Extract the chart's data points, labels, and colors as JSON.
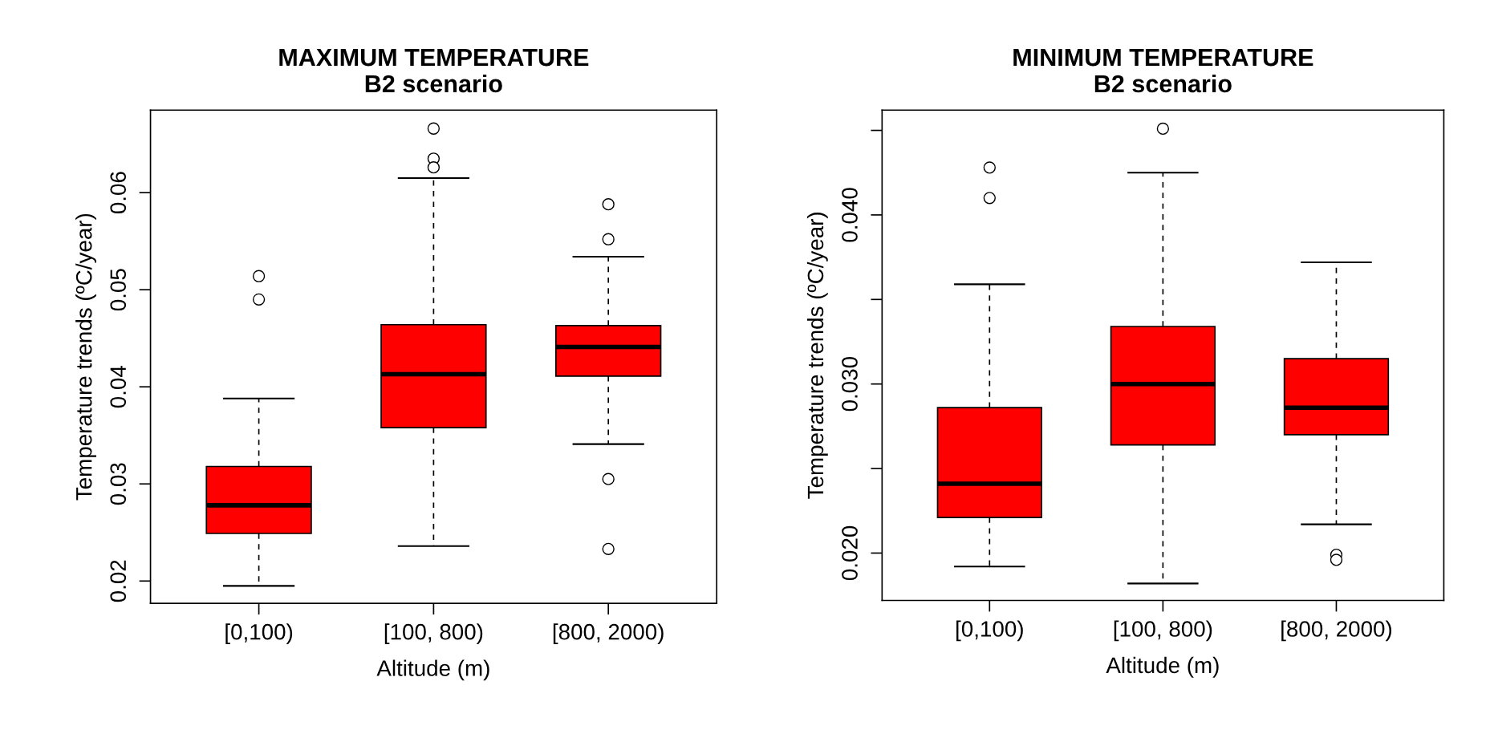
{
  "chart_data": [
    {
      "type": "box",
      "title": "MAXIMUM TEMPERATURE\nB2 scenario",
      "xlabel": "Altitude (m)",
      "ylabel": "Temperature trends (ºC/year)",
      "categories": [
        "[0,100)",
        "[100, 800)",
        "[800, 2000)"
      ],
      "color": "#ff0000",
      "ylim": [
        0.0177,
        0.0685
      ],
      "yticks": [
        0.02,
        0.03,
        0.04,
        0.05,
        0.06
      ],
      "grid": false,
      "boxes": [
        {
          "low": 0.0195,
          "q1": 0.0249,
          "median": 0.0278,
          "q3": 0.0318,
          "high": 0.0388,
          "outliers": [
            0.0514,
            0.049
          ]
        },
        {
          "low": 0.0236,
          "q1": 0.0358,
          "median": 0.0413,
          "q3": 0.0464,
          "high": 0.0615,
          "outliers": [
            0.0666,
            0.0635,
            0.0626
          ]
        },
        {
          "low": 0.0341,
          "q1": 0.0411,
          "median": 0.0441,
          "q3": 0.0463,
          "high": 0.0534,
          "outliers": [
            0.0588,
            0.0552,
            0.0305,
            0.0233
          ]
        }
      ]
    },
    {
      "type": "box",
      "title": "MINIMUM TEMPERATURE\nB2 scenario",
      "xlabel": "Altitude (m)",
      "ylabel": "Temperature trends (ºC/year)",
      "categories": [
        "[0,100)",
        "[100, 800)",
        "[800, 2000)"
      ],
      "color": "#ff0000",
      "ylim": [
        0.0172,
        0.0462
      ],
      "yticks": [
        {
          "value": 0.02,
          "label": "0.020"
        },
        {
          "value": 0.025,
          "label": null
        },
        {
          "value": 0.03,
          "label": "0.030"
        },
        {
          "value": 0.035,
          "label": null
        },
        {
          "value": 0.04,
          "label": "0.040"
        },
        {
          "value": 0.045,
          "label": null
        }
      ],
      "grid": false,
      "boxes": [
        {
          "low": 0.0192,
          "q1": 0.0221,
          "median": 0.0241,
          "q3": 0.0286,
          "high": 0.0359,
          "outliers": [
            0.0428,
            0.041
          ]
        },
        {
          "low": 0.0182,
          "q1": 0.0264,
          "median": 0.03,
          "q3": 0.0334,
          "high": 0.0425,
          "outliers": [
            0.0451
          ]
        },
        {
          "low": 0.0217,
          "q1": 0.027,
          "median": 0.0286,
          "q3": 0.0315,
          "high": 0.0372,
          "outliers": [
            0.0199,
            0.0196
          ]
        }
      ]
    }
  ]
}
